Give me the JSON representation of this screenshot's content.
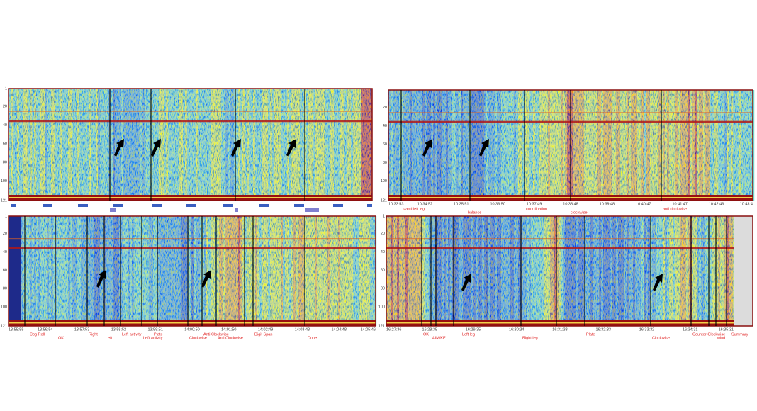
{
  "panels": [
    {
      "yticks": [
        1,
        20,
        40,
        60,
        80,
        100,
        121
      ],
      "time_labels": [],
      "event_labels": []
    },
    {
      "yticks": [
        20,
        40,
        60,
        80,
        100,
        121
      ],
      "time_labels": [
        "10:33:53",
        "10:34:52",
        "10:35:51",
        "10:36:50",
        "10:37:49",
        "10:38:48",
        "10:39:48",
        "10:40:47",
        "10:41:47",
        "10:42:46",
        "10:43:4"
      ],
      "event_labels": [
        "stand left leg",
        "balance",
        "coordination",
        "clockwise",
        "anti clockwise"
      ]
    },
    {
      "yticks": [
        1,
        20,
        40,
        60,
        80,
        100,
        121
      ],
      "time_labels": [
        "13:55:55",
        "13:56:54",
        "13:57:53",
        "13:58:52",
        "13:59:51",
        "14:00:50",
        "14:01:50",
        "14:02:49",
        "14:03:48",
        "14:04:48",
        "14:05:46"
      ],
      "event_labels": [
        "Cog Roll",
        "OK",
        "Right",
        "Left",
        "Left activity",
        "Left activity",
        "Plate",
        "Clockwise",
        "Anti Clockwise",
        "Anti Clockwise",
        "Digit Span",
        "Done"
      ]
    },
    {
      "yticks": [
        1,
        20,
        40,
        60,
        80,
        100,
        121
      ],
      "time_labels": [
        "16:27:36",
        "16:28:35",
        "16:29:35",
        "16:30:34",
        "16:31:33",
        "16:32:33",
        "16:33:32",
        "16:34:31",
        "16:35:31"
      ],
      "event_labels": [
        "OK",
        "AIM/KE",
        "Left leg",
        "Right leg",
        "Plate",
        "Clockwise",
        "Counter-Clockwise",
        "wind",
        "Summary"
      ]
    }
  ]
}
